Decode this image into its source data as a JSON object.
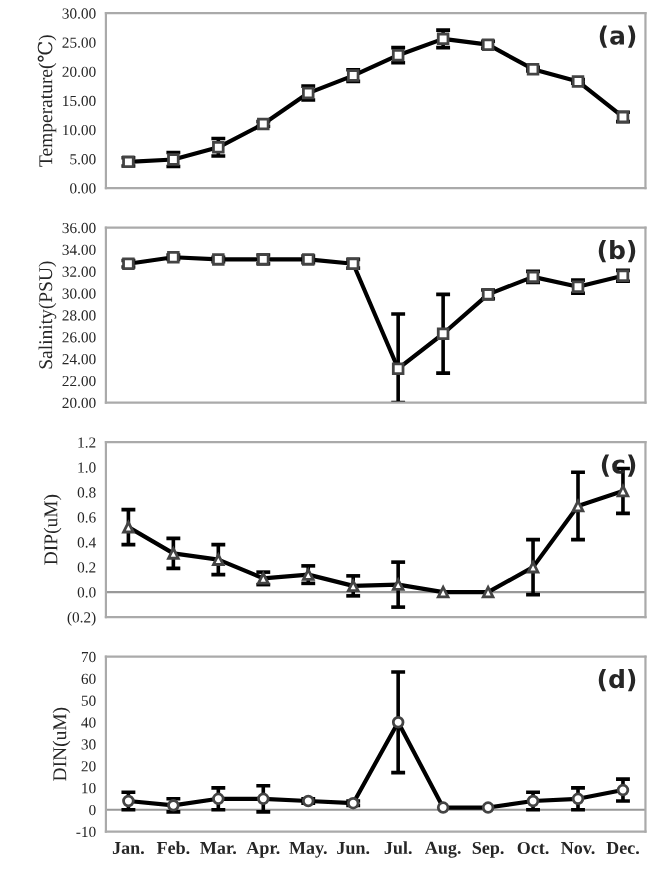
{
  "chart_data": [
    {
      "type": "line",
      "ylabel": "Temperature(℃)",
      "annotations": [
        "(a)"
      ],
      "categories": [
        null,
        null,
        null,
        null,
        null,
        null,
        null,
        null,
        null,
        null,
        null,
        null
      ],
      "series": [
        {
          "color": "#000000",
          "values": [
            4.5,
            4.9,
            7.0,
            11.0,
            16.3,
            19.3,
            22.8,
            25.6,
            24.6,
            20.4,
            18.3,
            12.2
          ],
          "errors": [
            0.7,
            1.2,
            1.5,
            0.4,
            1.2,
            1.0,
            1.3,
            1.5,
            0.6,
            0.3,
            0.3,
            0.8
          ]
        }
      ],
      "ylim": [
        0,
        30
      ],
      "yticks": [
        {
          "value": 0,
          "label": "0.00"
        },
        {
          "value": 5,
          "label": "5.00"
        },
        {
          "value": 10,
          "label": "10.00"
        },
        {
          "value": 15,
          "label": "15.00"
        },
        {
          "value": 20,
          "label": "20.00"
        },
        {
          "value": 25,
          "label": "25.00"
        },
        {
          "value": 30,
          "label": "30.00"
        }
      ],
      "marker": "square",
      "grid": false,
      "legend": false,
      "tick_labels": "y"
    },
    {
      "type": "line",
      "ylabel": "Salinity(PSU)",
      "annotations": [
        "(b)"
      ],
      "categories": [
        null,
        null,
        null,
        null,
        null,
        null,
        null,
        null,
        null,
        null,
        null,
        null
      ],
      "series": [
        {
          "color": "#000000",
          "values": [
            32.7,
            33.3,
            33.1,
            33.1,
            33.1,
            32.7,
            23.1,
            26.3,
            29.9,
            31.5,
            30.6,
            31.6
          ],
          "errors": [
            0.3,
            0.2,
            0.2,
            0.4,
            0.3,
            0.4,
            [
              20.0,
              28.1
            ],
            3.6,
            0.4,
            0.5,
            0.6,
            0.5
          ]
        }
      ],
      "ylim": [
        20,
        36
      ],
      "yticks": [
        {
          "value": 20,
          "label": "20.00"
        },
        {
          "value": 22,
          "label": "22.00"
        },
        {
          "value": 24,
          "label": "24.00"
        },
        {
          "value": 26,
          "label": "26.00"
        },
        {
          "value": 28,
          "label": "28.00"
        },
        {
          "value": 30,
          "label": "30.00"
        },
        {
          "value": 32,
          "label": "32.00"
        },
        {
          "value": 34,
          "label": "34.00"
        },
        {
          "value": 36,
          "label": "36.00"
        }
      ],
      "marker": "square",
      "grid": false,
      "legend": false,
      "tick_labels": "y"
    },
    {
      "type": "line",
      "ylabel": "DIP(uM)",
      "annotations": [
        "(c)"
      ],
      "categories": [
        null,
        null,
        null,
        null,
        null,
        null,
        null,
        null,
        null,
        null,
        null,
        null
      ],
      "series": [
        {
          "color": "#000000",
          "values": [
            0.52,
            0.31,
            0.26,
            0.11,
            0.14,
            0.05,
            0.06,
            0.0,
            0.0,
            0.2,
            0.69,
            0.81
          ],
          "errors": [
            0.14,
            0.12,
            0.12,
            0.05,
            0.07,
            0.08,
            0.18,
            null,
            null,
            0.22,
            0.27,
            0.18
          ]
        }
      ],
      "ylim": [
        -0.2,
        1.2
      ],
      "yticks": [
        {
          "value": -0.2,
          "label": "(0.2)"
        },
        {
          "value": 0,
          "label": "0.0"
        },
        {
          "value": 0.2,
          "label": "0.2"
        },
        {
          "value": 0.4,
          "label": "0.4"
        },
        {
          "value": 0.6,
          "label": "0.6"
        },
        {
          "value": 0.8,
          "label": "0.8"
        },
        {
          "value": 1.0,
          "label": "1.0"
        },
        {
          "value": 1.2,
          "label": "1.2"
        }
      ],
      "ref_lines": [
        {
          "axis": "y",
          "value": 0,
          "color": "#999999"
        }
      ],
      "marker": "triangle",
      "grid": false,
      "legend": false,
      "tick_labels": "y"
    },
    {
      "type": "line",
      "ylabel": "DIN(uM)",
      "annotations": [
        "(d)"
      ],
      "categories": [
        "Jan.",
        "Feb.",
        "Mar.",
        "Apr.",
        "May.",
        "Jun.",
        "Jul.",
        "Aug.",
        "Sep.",
        "Oct.",
        "Nov.",
        "Dec."
      ],
      "series": [
        {
          "color": "#000000",
          "values": [
            4,
            2,
            5,
            5,
            4,
            3,
            40,
            1,
            1,
            4,
            5,
            9
          ],
          "errors": [
            4,
            3,
            5,
            6,
            1,
            1,
            23,
            null,
            null,
            4,
            5,
            5
          ]
        }
      ],
      "ylim": [
        -10,
        70
      ],
      "yticks": [
        -10,
        0,
        10,
        20,
        30,
        40,
        50,
        60,
        70
      ],
      "ref_lines": [
        {
          "axis": "y",
          "value": 0,
          "color": "#999999"
        }
      ],
      "marker": "circle",
      "grid": false,
      "legend": false
    }
  ]
}
